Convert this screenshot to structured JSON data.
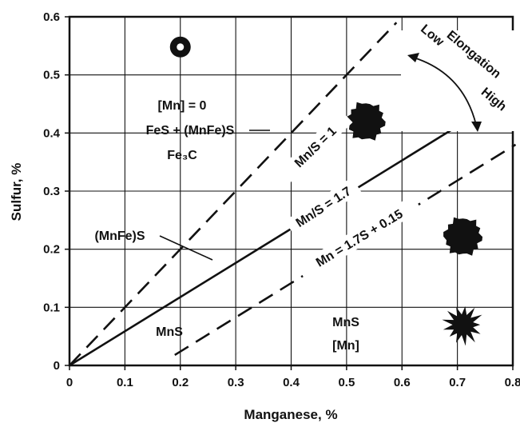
{
  "chart_data": {
    "type": "line",
    "xlabel": "Manganese, %",
    "ylabel": "Sulfur, %",
    "xlim": [
      0,
      0.8
    ],
    "ylim": [
      0,
      0.6
    ],
    "grid": true,
    "x_ticks": [
      "0",
      "0.1",
      "0.2",
      "0.3",
      "0.4",
      "0.5",
      "0.6",
      "0.7",
      "0.8"
    ],
    "y_ticks": [
      "0",
      "0.1",
      "0.2",
      "0.3",
      "0.4",
      "0.5",
      "0.6"
    ],
    "series": [
      {
        "name": "Mn/S = 1",
        "style": "dashed",
        "x": [
          0,
          0.59
        ],
        "y": [
          0,
          0.59
        ]
      },
      {
        "name": "Mn/S = 1.7",
        "style": "solid",
        "x": [
          0,
          0.75
        ],
        "y": [
          0,
          0.441
        ]
      },
      {
        "name": "Mn = 1.7S + 0.15",
        "style": "dashed",
        "x": [
          0.19,
          0.805
        ],
        "y": [
          0.018,
          0.38
        ]
      }
    ],
    "regions": [
      {
        "lines": [
          "[Mn] = 0",
          "FeS + (MnFe)S",
          "Fe₃C"
        ],
        "x": 0.22,
        "y": 0.42
      },
      {
        "lines": [
          "(MnFe)S"
        ],
        "x": 0.13,
        "y": 0.232
      },
      {
        "lines": [
          "MnS"
        ],
        "x": 0.185,
        "y": 0.055
      },
      {
        "lines": [
          "MnS",
          "[Mn]"
        ],
        "x": 0.465,
        "y": 0.07
      }
    ],
    "annotations": {
      "elongation": "Elongation",
      "low": "Low",
      "high": "High"
    },
    "inclusion_markers": [
      {
        "shape": "ring",
        "x": 0.2,
        "y": 0.548
      },
      {
        "shape": "blob",
        "x": 0.535,
        "y": 0.42
      },
      {
        "shape": "blob",
        "x": 0.71,
        "y": 0.222
      },
      {
        "shape": "star",
        "x": 0.71,
        "y": 0.07
      }
    ]
  }
}
